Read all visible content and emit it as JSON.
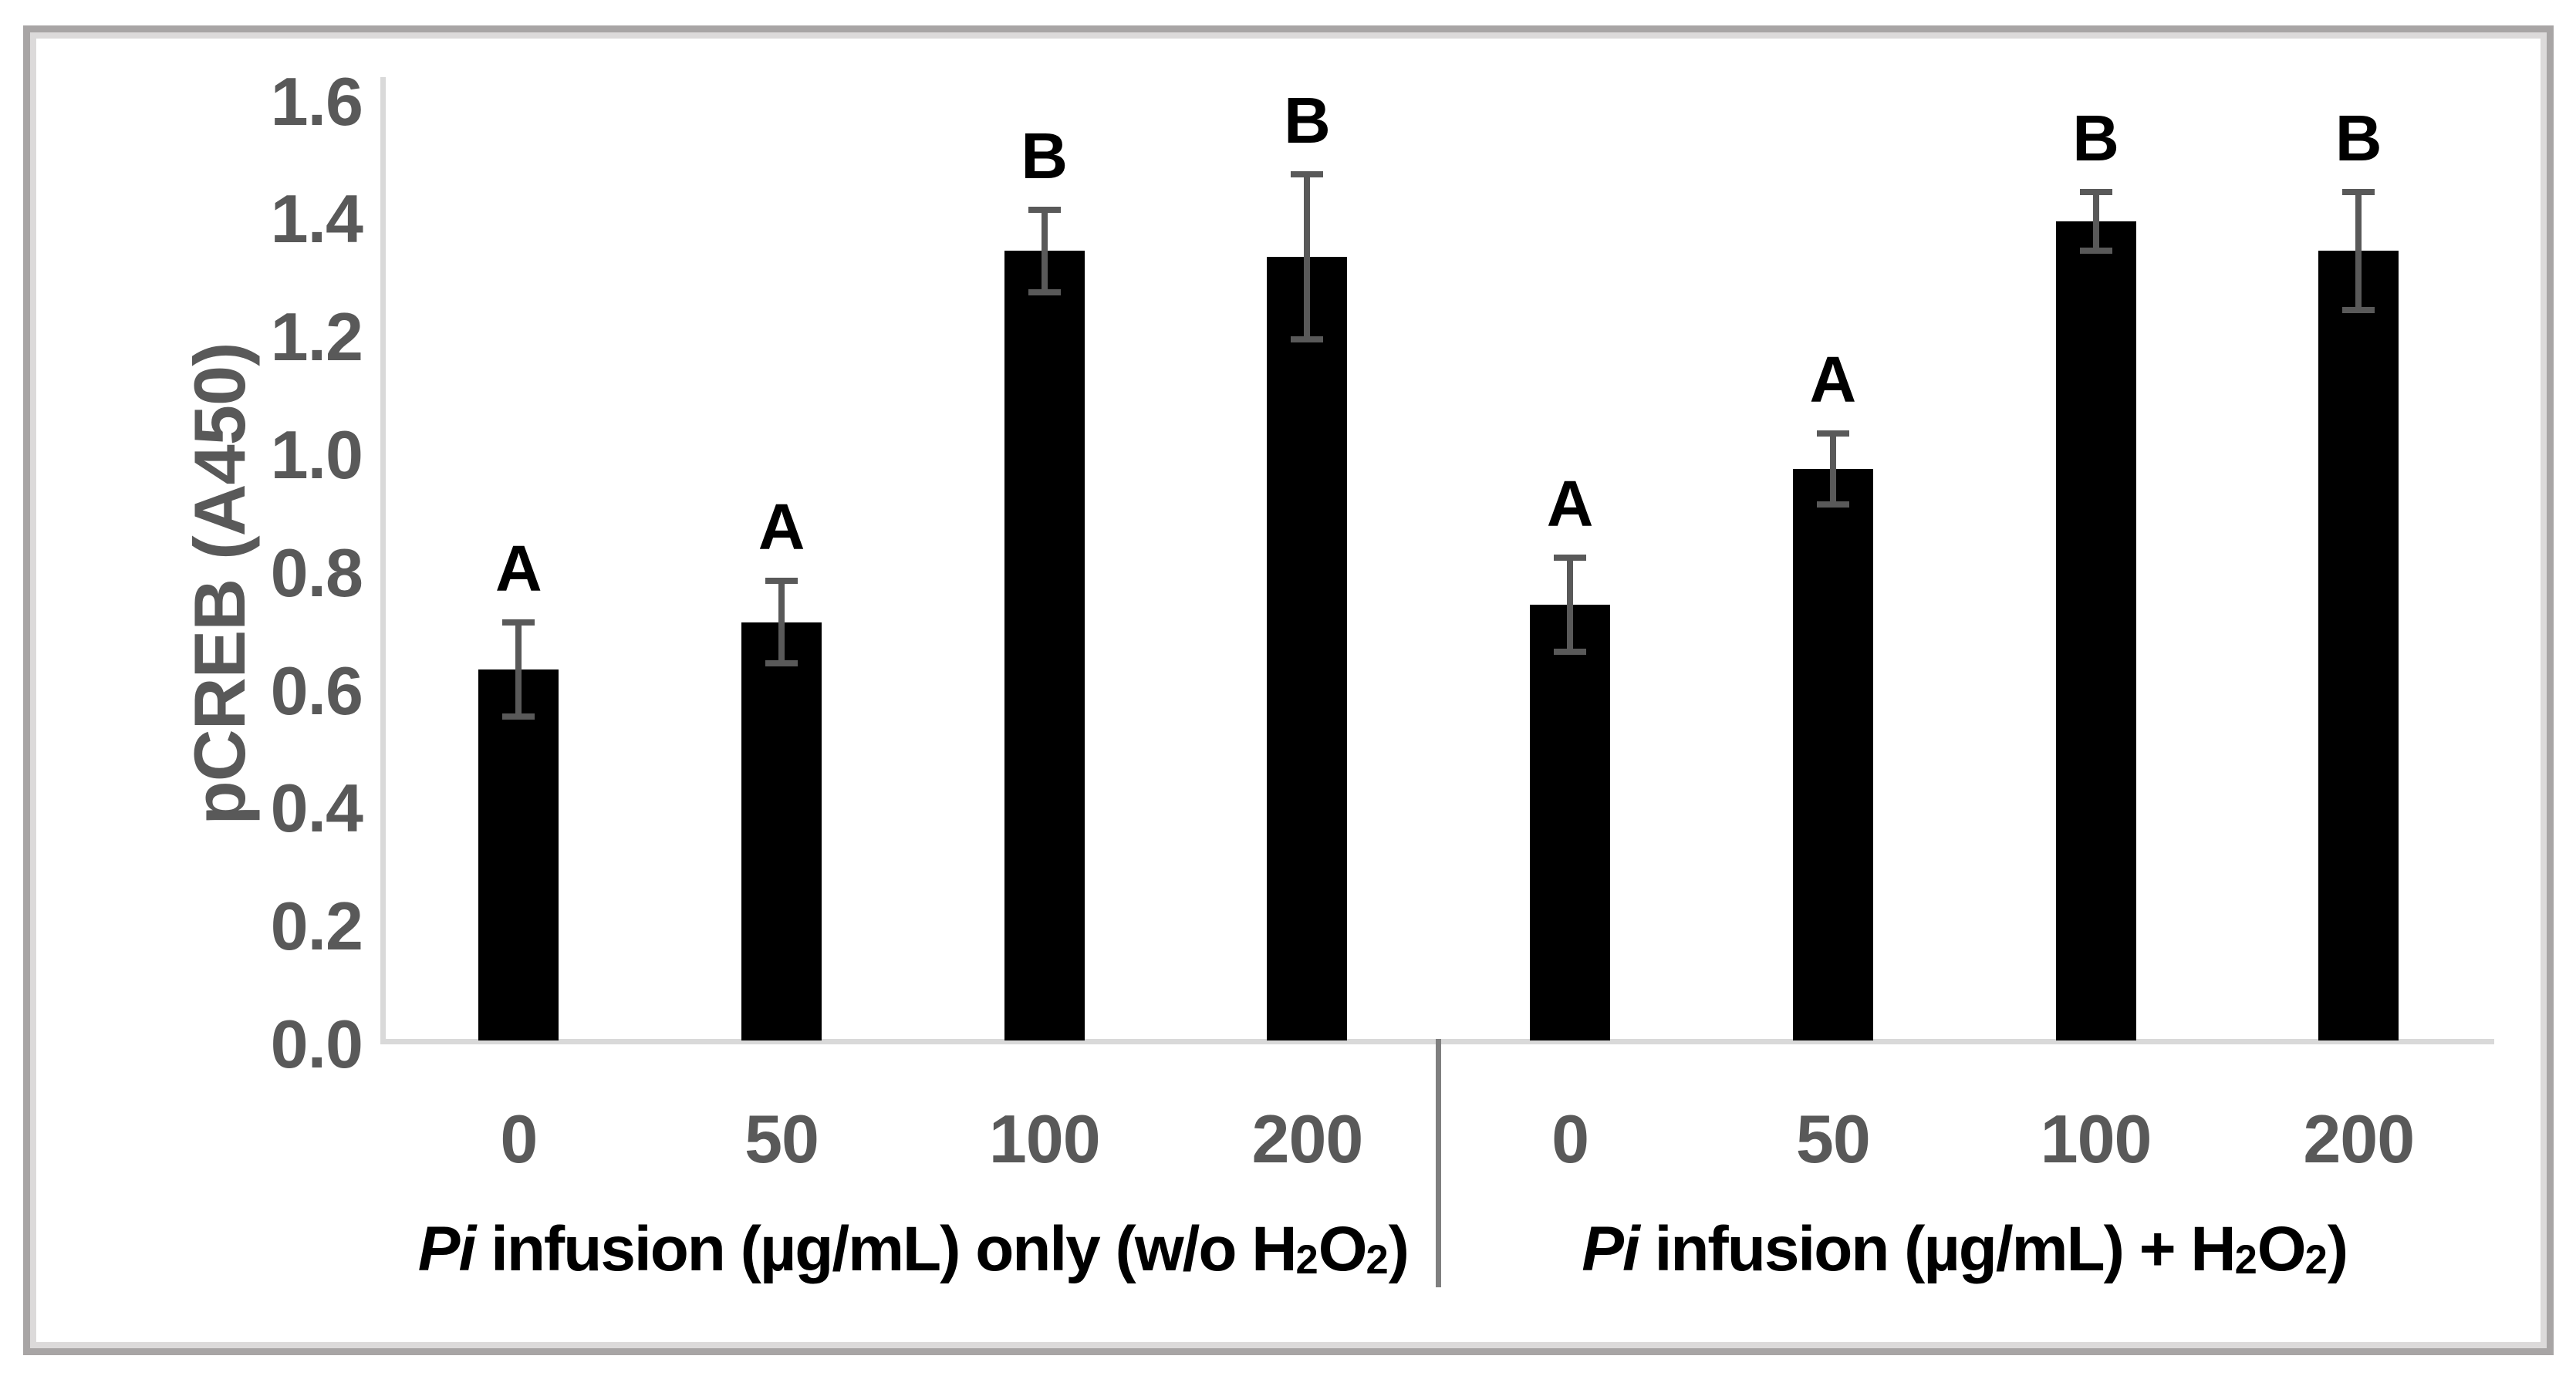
{
  "figure": {
    "frame_outer_color": "#a8a5a5",
    "frame_inner_color": "#dcdada",
    "axis_line_color": "#d9d9d9",
    "divider_color": "#7f7f7f",
    "bar_color": "#000000",
    "error_bar_color": "#595959",
    "tick_text_color": "#595959",
    "sig_letter_color": "#000000"
  },
  "chart_data": {
    "type": "bar",
    "title": "",
    "xlabel": "",
    "ylabel": "pCREB (A450)",
    "ylim": [
      0,
      1.6
    ],
    "ytick_step": 0.2,
    "yticks": [
      "0.0",
      "0.2",
      "0.4",
      "0.6",
      "0.8",
      "1.0",
      "1.2",
      "1.4",
      "1.6"
    ],
    "grid": false,
    "legend": null,
    "groups": [
      {
        "group_label_plain": "Pi infusion (µg/mL) only (w/o H2O2)",
        "group_label_parts": [
          {
            "t": "Pi",
            "style": "italic"
          },
          {
            "t": " infusion (µg/mL) only (w/o H",
            "style": ""
          },
          {
            "t": "2",
            "style": "sub"
          },
          {
            "t": "O",
            "style": ""
          },
          {
            "t": "2",
            "style": "sub"
          },
          {
            "t": ")",
            "style": ""
          }
        ],
        "categories": [
          "0",
          "50",
          "100",
          "200"
        ],
        "values": [
          0.63,
          0.71,
          1.34,
          1.33
        ],
        "errors": [
          0.08,
          0.07,
          0.07,
          0.14
        ],
        "sig_letters": [
          "A",
          "A",
          "B",
          "B"
        ]
      },
      {
        "group_label_plain": "Pi infusion (µg/mL) + H2O2)",
        "group_label_parts": [
          {
            "t": "Pi",
            "style": "italic"
          },
          {
            "t": " infusion (µg/mL) + H",
            "style": ""
          },
          {
            "t": "2",
            "style": "sub"
          },
          {
            "t": "O",
            "style": ""
          },
          {
            "t": "2",
            "style": "sub"
          },
          {
            "t": ")",
            "style": ""
          }
        ],
        "categories": [
          "0",
          "50",
          "100",
          "200"
        ],
        "values": [
          0.74,
          0.97,
          1.39,
          1.34
        ],
        "errors": [
          0.08,
          0.06,
          0.05,
          0.1
        ],
        "sig_letters": [
          "A",
          "A",
          "B",
          "B"
        ]
      }
    ]
  }
}
